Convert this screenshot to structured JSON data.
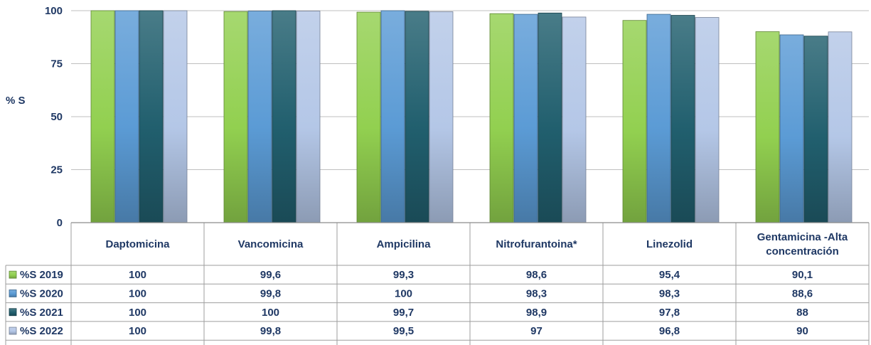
{
  "chart_data": {
    "type": "bar",
    "ylabel": "% S",
    "ylim": [
      0,
      100
    ],
    "yticks": [
      0,
      25,
      50,
      75,
      100
    ],
    "grid": true,
    "categories": [
      [
        "Daptomicina"
      ],
      [
        "Vancomicina"
      ],
      [
        "Ampicilina"
      ],
      [
        "Nitrofurantoina*"
      ],
      [
        "Linezolid"
      ],
      [
        "Gentamicina -Alta",
        "concentración"
      ]
    ],
    "series": [
      {
        "name": "%S 2019",
        "color": "#92d050",
        "values": [
          100,
          99.6,
          99.3,
          98.6,
          95.4,
          90.1
        ],
        "labels": [
          "100",
          "99,6",
          "99,3",
          "98,6",
          "95,4",
          "90,1"
        ]
      },
      {
        "name": "%S 2020",
        "color": "#5b9bd5",
        "values": [
          100,
          99.8,
          100,
          98.3,
          98.3,
          88.6
        ],
        "labels": [
          "100",
          "99,8",
          "100",
          "98,3",
          "98,3",
          "88,6"
        ]
      },
      {
        "name": "%S 2021",
        "color": "#215f6e",
        "values": [
          100,
          100,
          99.7,
          98.9,
          97.8,
          88
        ],
        "labels": [
          "100",
          "100",
          "99,7",
          "98,9",
          "97,8",
          "88"
        ]
      },
      {
        "name": "%S 2022",
        "color": "#b4c7e7",
        "values": [
          100,
          99.8,
          99.5,
          97,
          96.8,
          90
        ],
        "labels": [
          "100",
          "99,8",
          "99,5",
          "97",
          "96,8",
          "90"
        ]
      }
    ]
  }
}
